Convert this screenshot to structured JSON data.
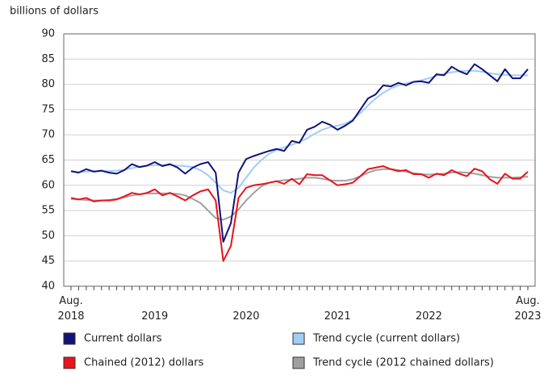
{
  "chart_data": {
    "type": "line",
    "y_label": "billions of dollars",
    "categories": [
      "Aug. 2018",
      null,
      null,
      null,
      null,
      null,
      null,
      null,
      null,
      null,
      null,
      "2019",
      null,
      null,
      null,
      null,
      null,
      null,
      null,
      null,
      null,
      null,
      null,
      "2020",
      null,
      null,
      null,
      null,
      null,
      null,
      null,
      null,
      null,
      null,
      null,
      "2021",
      null,
      null,
      null,
      null,
      null,
      null,
      null,
      null,
      null,
      null,
      null,
      "2022",
      null,
      null,
      null,
      null,
      null,
      null,
      null,
      null,
      null,
      null,
      null,
      null,
      "Aug. 2023"
    ],
    "ylim": [
      40,
      90
    ],
    "yticks": [
      40,
      45,
      50,
      55,
      60,
      65,
      70,
      75,
      80,
      85,
      90
    ],
    "grid": true,
    "series": [
      {
        "name": "Current dollars",
        "color": "#12127a",
        "values": [
          62.8,
          62.5,
          63.2,
          62.7,
          62.9,
          62.5,
          62.3,
          63.0,
          64.2,
          63.6,
          63.9,
          64.6,
          63.8,
          64.2,
          63.5,
          62.3,
          63.5,
          64.2,
          64.6,
          62.5,
          48.8,
          52.5,
          62.5,
          65.2,
          65.8,
          66.3,
          66.8,
          67.2,
          66.8,
          68.8,
          68.4,
          71.0,
          71.6,
          72.6,
          72.0,
          71.0,
          71.8,
          72.8,
          75.0,
          77.2,
          78.0,
          79.8,
          79.6,
          80.3,
          79.8,
          80.5,
          80.6,
          80.3,
          82.0,
          81.8,
          83.5,
          82.6,
          82.0,
          84.0,
          83.0,
          81.8,
          80.6,
          83.0,
          81.2,
          81.2,
          83.0
        ]
      },
      {
        "name": "Trend cycle (current dollars)",
        "color": "#9fcdf5",
        "values": [
          62.8,
          62.6,
          62.7,
          62.8,
          62.8,
          62.8,
          62.9,
          63.1,
          63.4,
          63.7,
          63.9,
          64.0,
          64.0,
          64.0,
          63.9,
          63.8,
          63.6,
          63.0,
          62.0,
          60.5,
          59.0,
          58.5,
          59.5,
          61.5,
          63.5,
          65.0,
          66.2,
          67.0,
          67.5,
          68.0,
          68.6,
          69.3,
          70.2,
          71.0,
          71.5,
          71.8,
          72.2,
          73.0,
          74.3,
          75.8,
          77.2,
          78.3,
          79.2,
          79.8,
          80.2,
          80.5,
          80.8,
          81.2,
          81.7,
          82.1,
          82.4,
          82.6,
          82.7,
          82.7,
          82.5,
          82.2,
          82.0,
          81.9,
          81.8,
          81.8,
          81.8
        ]
      },
      {
        "name": "Chained (2012) dollars",
        "color": "#e8131b",
        "values": [
          57.5,
          57.2,
          57.5,
          56.8,
          57.0,
          57.0,
          57.2,
          57.8,
          58.5,
          58.2,
          58.5,
          59.2,
          58.0,
          58.5,
          57.8,
          57.0,
          58.0,
          58.8,
          59.2,
          57.0,
          45.0,
          48.0,
          57.5,
          59.5,
          60.0,
          60.2,
          60.5,
          60.8,
          60.3,
          61.3,
          60.2,
          62.2,
          62.0,
          62.0,
          61.0,
          60.0,
          60.2,
          60.5,
          61.8,
          63.2,
          63.5,
          63.8,
          63.2,
          62.8,
          63.0,
          62.2,
          62.2,
          61.5,
          62.3,
          62.0,
          63.0,
          62.3,
          61.8,
          63.3,
          62.8,
          61.2,
          60.3,
          62.3,
          61.3,
          61.3,
          62.7
        ]
      },
      {
        "name": "Trend cycle (2012 chained dollars)",
        "color": "#a0a0a0",
        "values": [
          57.3,
          57.2,
          57.1,
          57.0,
          57.0,
          57.1,
          57.3,
          57.6,
          58.0,
          58.2,
          58.4,
          58.4,
          58.4,
          58.4,
          58.3,
          58.0,
          57.3,
          56.5,
          55.0,
          53.5,
          53.2,
          53.8,
          55.2,
          57.0,
          58.5,
          59.8,
          60.5,
          60.8,
          61.0,
          61.1,
          61.3,
          61.5,
          61.5,
          61.3,
          61.0,
          60.9,
          60.9,
          61.2,
          61.8,
          62.5,
          63.0,
          63.2,
          63.2,
          63.0,
          62.7,
          62.4,
          62.2,
          62.1,
          62.2,
          62.3,
          62.5,
          62.6,
          62.5,
          62.3,
          62.0,
          61.7,
          61.5,
          61.5,
          61.5,
          61.6,
          61.7
        ]
      }
    ]
  }
}
